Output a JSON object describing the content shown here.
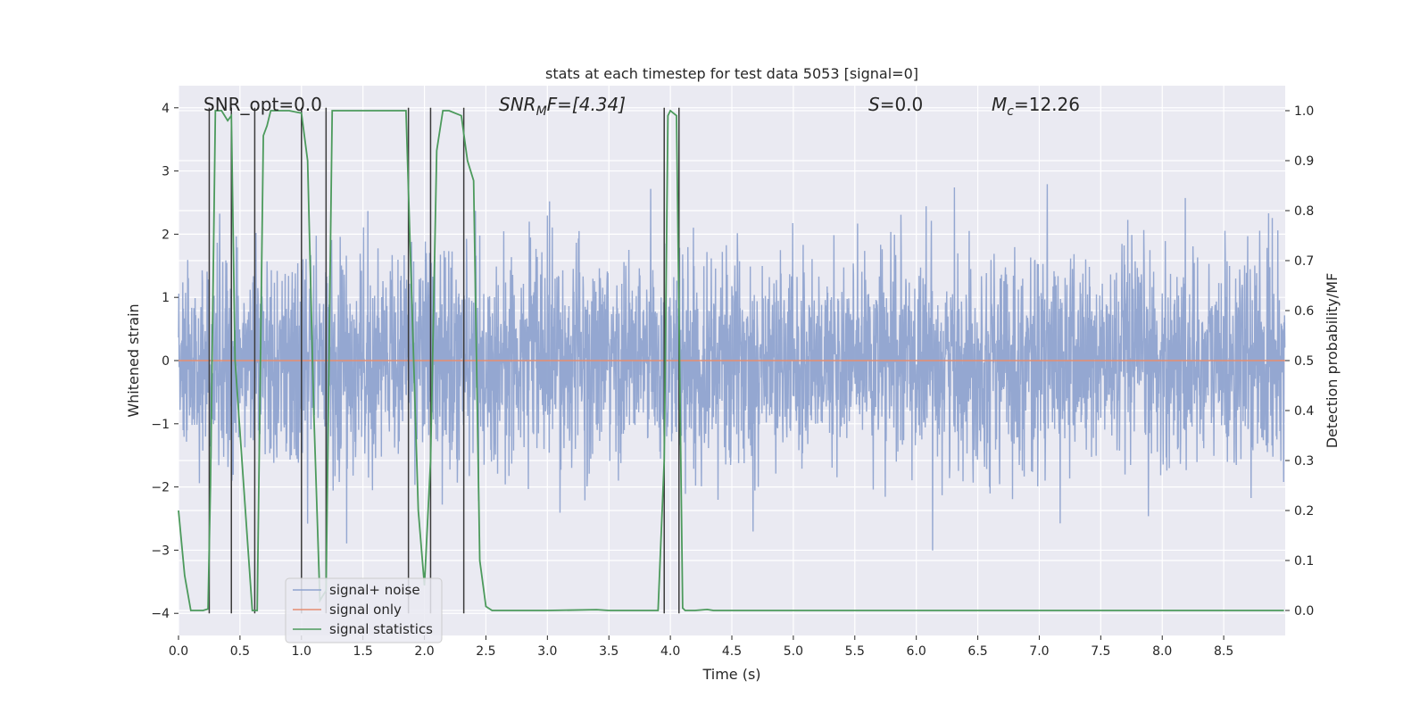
{
  "chart_data": {
    "type": "line",
    "title": "stats at each timestep for test data 5053 [signal=0]",
    "xlabel": "Time (s)",
    "ylabel_left": "Whitened strain",
    "ylabel_right": "Detection probability/MF",
    "xlim": [
      0.0,
      9.0
    ],
    "ylim_left": [
      -4.35,
      4.35
    ],
    "ylim_right": [
      -0.05,
      1.05
    ],
    "x_ticks": [
      0.0,
      0.5,
      1.0,
      1.5,
      2.0,
      2.5,
      3.0,
      3.5,
      4.0,
      4.5,
      5.0,
      5.5,
      6.0,
      6.5,
      7.0,
      7.5,
      8.0,
      8.5
    ],
    "x_tick_labels": [
      "0.0",
      "0.5",
      "1.0",
      "1.5",
      "2.0",
      "2.5",
      "3.0",
      "3.5",
      "4.0",
      "4.5",
      "5.0",
      "5.5",
      "6.0",
      "6.5",
      "7.0",
      "7.5",
      "8.0",
      "8.5"
    ],
    "y_left_ticks": [
      -4,
      -3,
      -2,
      -1,
      0,
      1,
      2,
      3,
      4
    ],
    "y_left_tick_labels": [
      "−4",
      "−3",
      "−2",
      "−1",
      "0",
      "1",
      "2",
      "3",
      "4"
    ],
    "y_right_ticks": [
      0.0,
      0.1,
      0.2,
      0.3,
      0.4,
      0.5,
      0.6,
      0.7,
      0.8,
      0.9,
      1.0
    ],
    "y_right_tick_labels": [
      "0.0",
      "0.1",
      "0.2",
      "0.3",
      "0.4",
      "0.5",
      "0.6",
      "0.7",
      "0.8",
      "0.9",
      "1.0"
    ],
    "annotations": {
      "snr_opt": "SNR_opt=0.0",
      "snr_mf_name": "SNR",
      "snr_mf_sub": "M",
      "snr_mf_value": "F=[4.34]",
      "s_name": "S",
      "s_value": "=0.0",
      "mc_name": "M",
      "mc_sub": "c",
      "mc_value": "=12.26"
    },
    "series": [
      {
        "name": "signal+ noise",
        "color": "#8fa3cf",
        "kind": "noise",
        "sample_rate": 400,
        "duration": 9.0,
        "sigma": 0.82,
        "amplitude_range": [
          -3.9,
          3.95
        ]
      },
      {
        "name": "signal only",
        "color": "#e58d71",
        "kind": "constant",
        "value": 0.0
      },
      {
        "name": "signal statistics",
        "color": "#4c9a5c",
        "axis": "right",
        "x": [
          0.0,
          0.05,
          0.1,
          0.2,
          0.24,
          0.26,
          0.3,
          0.35,
          0.4,
          0.43,
          0.46,
          0.6,
          0.62,
          0.64,
          0.69,
          0.72,
          0.75,
          0.8,
          0.9,
          1.0,
          1.05,
          1.1,
          1.15,
          1.2,
          1.25,
          1.3,
          1.5,
          1.7,
          1.85,
          1.9,
          1.95,
          2.0,
          2.05,
          2.1,
          2.15,
          2.2,
          2.25,
          2.3,
          2.35,
          2.4,
          2.45,
          2.5,
          2.55,
          2.6,
          3.0,
          3.4,
          3.5,
          3.6,
          3.8,
          3.9,
          3.95,
          3.98,
          4.0,
          4.05,
          4.1,
          4.12,
          4.15,
          4.2,
          4.3,
          4.35,
          4.5,
          5.0,
          6.0,
          7.0,
          8.0,
          8.99
        ],
        "y": [
          0.2,
          0.07,
          0.0,
          0.0,
          0.003,
          0.25,
          1.0,
          1.0,
          0.98,
          0.99,
          0.5,
          0.0,
          0.0,
          0.0,
          0.95,
          0.97,
          1.0,
          1.0,
          1.0,
          0.995,
          0.9,
          0.4,
          0.02,
          0.04,
          1.0,
          1.0,
          1.0,
          1.0,
          1.0,
          0.6,
          0.2,
          0.05,
          0.3,
          0.92,
          1.0,
          1.0,
          0.995,
          0.99,
          0.9,
          0.86,
          0.1,
          0.008,
          0.0,
          0.0,
          0.0,
          0.0015,
          0.0,
          0.0,
          0.0,
          0.0,
          0.3,
          0.99,
          1.0,
          0.99,
          0.005,
          0.0,
          0.0,
          0.0,
          0.002,
          0.0,
          0.0,
          0.0,
          0.0,
          0.0,
          0.0,
          0.0
        ]
      }
    ],
    "vertical_markers": {
      "color": "#3b3b3b",
      "x": [
        0.25,
        0.43,
        0.62,
        1.0,
        1.2,
        1.87,
        2.05,
        2.32,
        3.95,
        4.07
      ],
      "y_range": [
        -4.0,
        4.0
      ]
    },
    "legend": {
      "position": "lower-left",
      "entries": [
        "signal+ noise",
        "signal only",
        "signal statistics"
      ]
    },
    "grid": true,
    "background": "#eaeaf2"
  }
}
